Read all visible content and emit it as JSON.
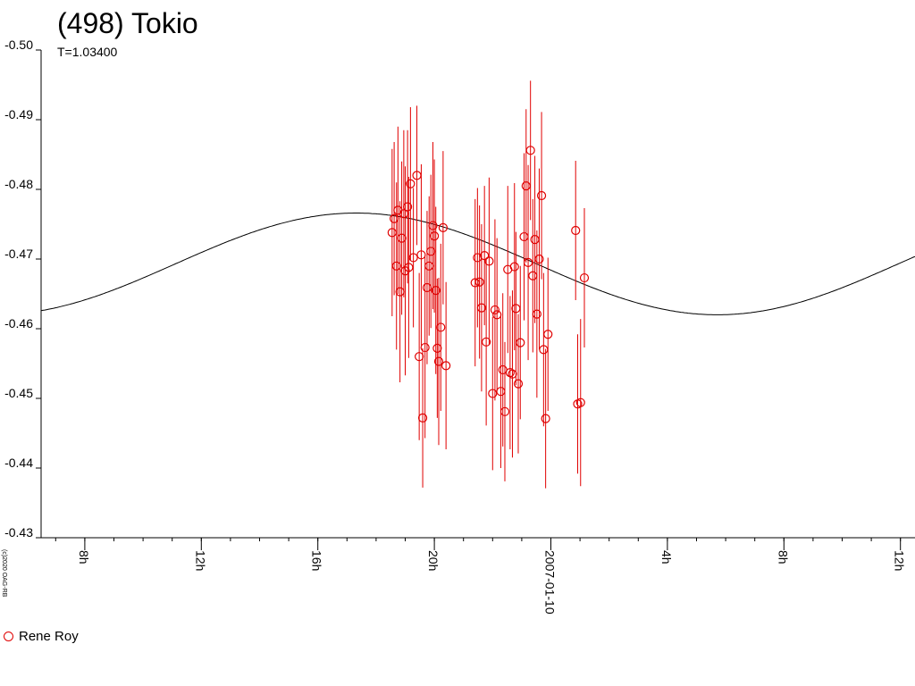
{
  "title": "(498) Tokio",
  "subtitle": "T=1.03400",
  "copyright": "(c)2020 OAG-RB",
  "legend": [
    {
      "name": "Rene Roy",
      "color": "#e00000"
    }
  ],
  "colors": {
    "axis": "#000000",
    "curve": "#000000",
    "data": "#e00000"
  },
  "chart_data": {
    "type": "scatter",
    "title": "(498) Tokio",
    "subtitle": "T=1.03400",
    "xlabel": "",
    "ylabel": "",
    "x_unit": "hours, 2007-01-09 to 2007-01-10",
    "xlim": [
      6.5,
      36.5
    ],
    "ylim": [
      -0.5,
      -0.43
    ],
    "y_inverted": true,
    "y_ticks": [
      "-0.50",
      "-0.49",
      "-0.48",
      "-0.47",
      "-0.46",
      "-0.45",
      "-0.44",
      "-0.43"
    ],
    "y_tick_values": [
      -0.5,
      -0.49,
      -0.48,
      -0.47,
      -0.46,
      -0.45,
      -0.44,
      -0.43
    ],
    "x_ticks": [
      {
        "x": 8,
        "label": "8h"
      },
      {
        "x": 12,
        "label": "12h"
      },
      {
        "x": 16,
        "label": "16h"
      },
      {
        "x": 20,
        "label": "20h"
      },
      {
        "x": 24,
        "label": "2007-01-10"
      },
      {
        "x": 28,
        "label": "4h"
      },
      {
        "x": 32,
        "label": "8h"
      },
      {
        "x": 36,
        "label": "12h"
      }
    ],
    "minor_tick_step": 1,
    "fit_curve": {
      "period_h": 24.816,
      "mean": -0.4693,
      "amplitude": 0.0073,
      "peak_x": 17.31
    },
    "series": [
      {
        "name": "Rene Roy",
        "points": [
          [
            18.55,
            -0.4738,
            0.012
          ],
          [
            18.62,
            -0.4758,
            0.011
          ],
          [
            18.7,
            -0.469,
            0.012
          ],
          [
            18.75,
            -0.477,
            0.012
          ],
          [
            18.82,
            -0.4653,
            0.013
          ],
          [
            18.88,
            -0.473,
            0.011
          ],
          [
            18.95,
            -0.4765,
            0.012
          ],
          [
            19.0,
            -0.4683,
            0.015
          ],
          [
            19.08,
            -0.4775,
            0.011
          ],
          [
            19.12,
            -0.4688,
            0.013
          ],
          [
            19.18,
            -0.4808,
            0.011
          ],
          [
            19.28,
            -0.4702,
            0.01
          ],
          [
            19.4,
            -0.482,
            0.01
          ],
          [
            19.48,
            -0.456,
            0.012
          ],
          [
            19.55,
            -0.4706,
            0.013
          ],
          [
            19.6,
            -0.4472,
            0.01
          ],
          [
            19.68,
            -0.4573,
            0.013
          ],
          [
            19.75,
            -0.4659,
            0.011
          ],
          [
            19.82,
            -0.469,
            0.01
          ],
          [
            19.88,
            -0.4711,
            0.011
          ],
          [
            19.95,
            -0.4748,
            0.012
          ],
          [
            20.0,
            -0.4733,
            0.011
          ],
          [
            20.05,
            -0.4655,
            0.012
          ],
          [
            20.1,
            -0.4572,
            0.01
          ],
          [
            20.15,
            -0.4553,
            0.012
          ],
          [
            20.22,
            -0.4602,
            0.012
          ],
          [
            20.3,
            -0.4745,
            0.011
          ],
          [
            20.4,
            -0.4547,
            0.012
          ],
          [
            21.4,
            -0.4666,
            0.012
          ],
          [
            21.48,
            -0.4702,
            0.01
          ],
          [
            21.55,
            -0.4667,
            0.011
          ],
          [
            21.62,
            -0.463,
            0.012
          ],
          [
            21.72,
            -0.4705,
            0.01
          ],
          [
            21.78,
            -0.4581,
            0.012
          ],
          [
            21.88,
            -0.4697,
            0.012
          ],
          [
            22.0,
            -0.4507,
            0.011
          ],
          [
            22.08,
            -0.4627,
            0.013
          ],
          [
            22.15,
            -0.462,
            0.011
          ],
          [
            22.28,
            -0.451,
            0.011
          ],
          [
            22.35,
            -0.4541,
            0.011
          ],
          [
            22.42,
            -0.4481,
            0.01
          ],
          [
            22.52,
            -0.4685,
            0.012
          ],
          [
            22.6,
            -0.4537,
            0.011
          ],
          [
            22.68,
            -0.4535,
            0.012
          ],
          [
            22.75,
            -0.4689,
            0.012
          ],
          [
            22.8,
            -0.4629,
            0.011
          ],
          [
            22.88,
            -0.4521,
            0.01
          ],
          [
            22.95,
            -0.458,
            0.011
          ],
          [
            23.08,
            -0.4732,
            0.012
          ],
          [
            23.15,
            -0.4805,
            0.011
          ],
          [
            23.22,
            -0.4695,
            0.014
          ],
          [
            23.3,
            -0.4856,
            0.01
          ],
          [
            23.38,
            -0.4676,
            0.011
          ],
          [
            23.45,
            -0.4728,
            0.012
          ],
          [
            23.52,
            -0.4621,
            0.012
          ],
          [
            23.6,
            -0.47,
            0.013
          ],
          [
            23.68,
            -0.4791,
            0.012
          ],
          [
            23.75,
            -0.457,
            0.011
          ],
          [
            23.82,
            -0.4471,
            0.01
          ],
          [
            23.9,
            -0.4592,
            0.011
          ],
          [
            24.85,
            -0.4741,
            0.01
          ],
          [
            24.92,
            -0.4492,
            0.01
          ],
          [
            25.02,
            -0.4494,
            0.012
          ],
          [
            25.15,
            -0.4673,
            0.01
          ]
        ]
      }
    ]
  }
}
